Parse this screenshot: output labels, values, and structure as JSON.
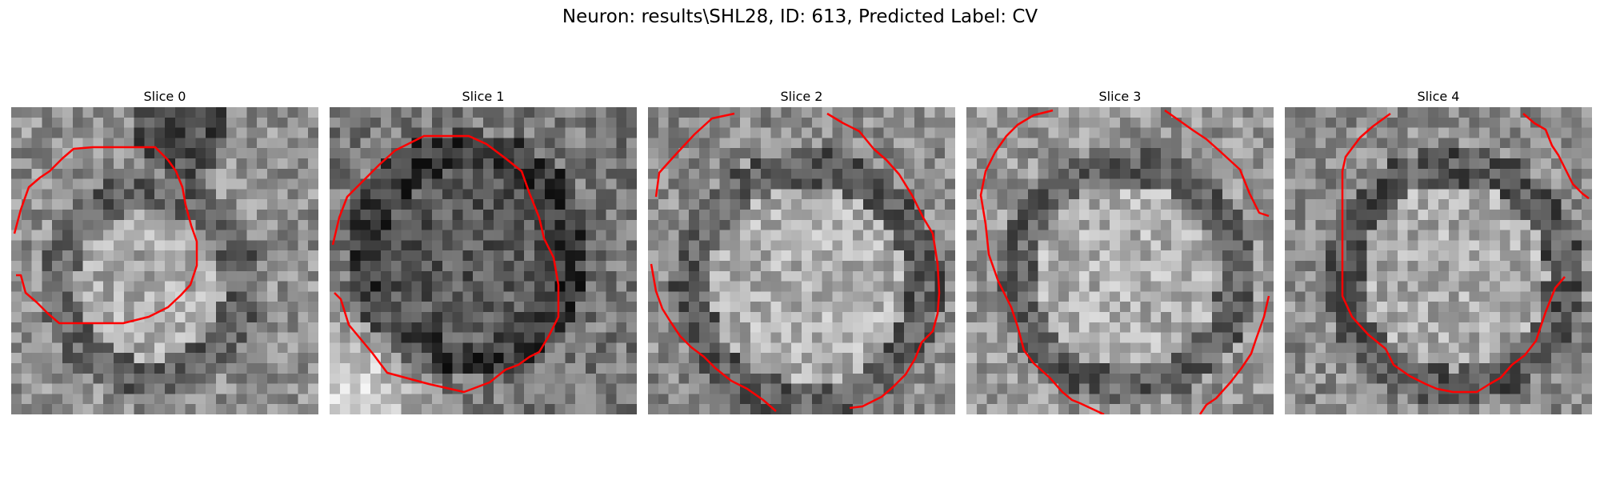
{
  "figure": {
    "title": "Neuron: results\\SHL28, ID: 613, Predicted Label: CV"
  },
  "panels": [
    {
      "title": "Slice 0"
    },
    {
      "title": "Slice 1"
    },
    {
      "title": "Slice 2"
    },
    {
      "title": "Slice 3"
    },
    {
      "title": "Slice 4"
    }
  ],
  "overlay": {
    "contour_color": "#ff0000",
    "colormap": "gray"
  }
}
